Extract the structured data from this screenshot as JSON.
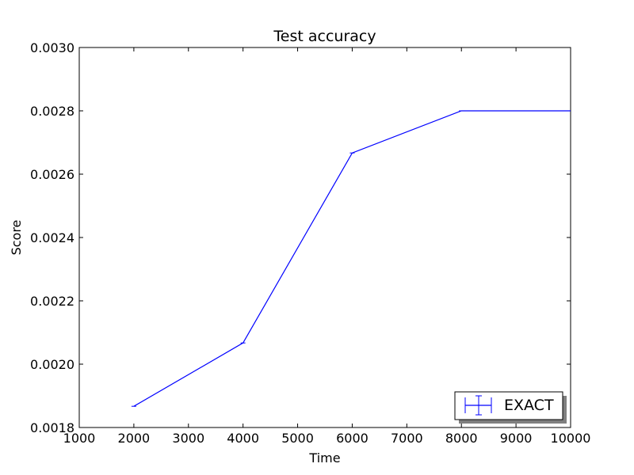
{
  "chart_data": {
    "type": "line",
    "title": "Test accuracy",
    "xlabel": "Time",
    "ylabel": "Score",
    "xlim": [
      1000,
      10000
    ],
    "ylim": [
      0.0018,
      0.003
    ],
    "xticks": [
      "1000",
      "2000",
      "3000",
      "4000",
      "5000",
      "6000",
      "7000",
      "8000",
      "9000",
      "10000"
    ],
    "yticks": [
      "0.0018",
      "0.0020",
      "0.0022",
      "0.0024",
      "0.0026",
      "0.0028",
      "0.0030"
    ],
    "grid": false,
    "legend_position": "lower-right",
    "series": [
      {
        "name": "EXACT",
        "color": "#0000ff",
        "x": [
          2000,
          4000,
          6000,
          8000,
          10000
        ],
        "y": [
          0.001867,
          0.002067,
          0.002667,
          0.0028,
          0.0028
        ]
      }
    ]
  }
}
